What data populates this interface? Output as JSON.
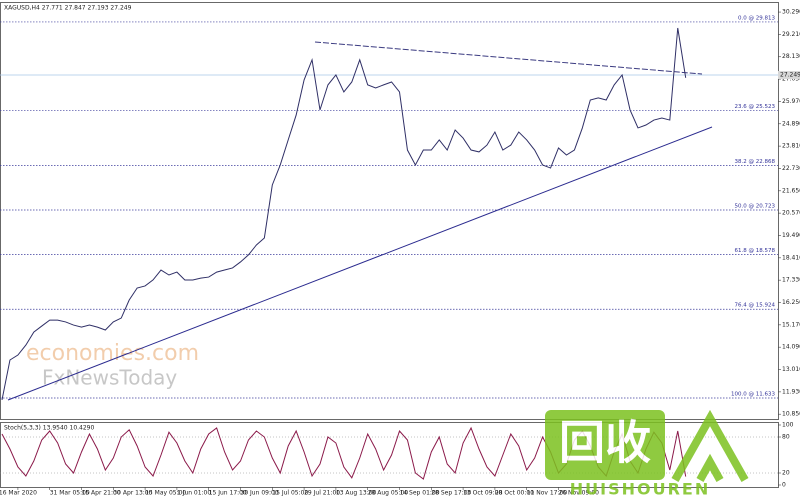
{
  "chart_data": [
    {
      "type": "line",
      "title": "XAGUSD,H4 27.771 27.847 27.193 27.249",
      "categories": [
        null,
        null,
        "16 Mar 2020",
        null,
        null,
        null,
        "31 Mar 05:00",
        null,
        null,
        null,
        "15 Apr 21:00",
        null,
        null,
        null,
        "30 Apr 13:00",
        null,
        null,
        null,
        "15 May 05:00",
        null,
        null,
        null,
        "1 Jun 01:00",
        null,
        null,
        null,
        "15 Jun 17:00",
        null,
        null,
        null,
        "30 Jun 09:00",
        null,
        null,
        null,
        "15 Jul 05:00",
        null,
        null,
        null,
        "29 Jul 21:00",
        null,
        null,
        null,
        "13 Aug 13:00",
        null,
        null,
        null,
        "28 Aug 05:00",
        null,
        null,
        null,
        "14 Sep 01:00",
        null,
        null,
        null,
        "28 Sep 17:00",
        null,
        null,
        null,
        "13 Oct 09:00",
        null,
        null,
        null,
        "28 Oct 00:00",
        null,
        null,
        null,
        "11 Nov 17:00",
        null,
        null,
        null,
        "26 Nov 09:00",
        null,
        null,
        null,
        null,
        null,
        null,
        null,
        null,
        null,
        null,
        null,
        null,
        null,
        null,
        null,
        null
      ],
      "series": [
        {
          "name": "XAGUSD",
          "color": "#2f2f66",
          "values": [
            11.54,
            13.47,
            13.71,
            14.19,
            14.82,
            15.11,
            15.4,
            15.4,
            15.31,
            15.16,
            15.06,
            15.16,
            15.06,
            14.92,
            15.31,
            15.5,
            16.37,
            16.95,
            17.05,
            17.34,
            17.82,
            17.58,
            17.72,
            17.34,
            17.34,
            17.43,
            17.48,
            17.72,
            17.82,
            17.92,
            18.21,
            18.55,
            19.03,
            19.37,
            21.93,
            22.9,
            24.11,
            25.31,
            27.01,
            27.98,
            25.56,
            26.77,
            27.25,
            26.43,
            26.91,
            27.98,
            26.77,
            26.62,
            26.77,
            26.91,
            26.43,
            23.62,
            22.9,
            23.62,
            23.62,
            24.11,
            23.62,
            24.59,
            24.2,
            23.62,
            23.53,
            23.86,
            24.49,
            23.62,
            23.86,
            24.49,
            24.11,
            23.62,
            22.9,
            22.75,
            23.72,
            23.38,
            23.62,
            24.69,
            26.04,
            26.14,
            26.04,
            26.77,
            27.25,
            25.56,
            24.69,
            24.83,
            25.07,
            25.17,
            25.07,
            29.52,
            27.11
          ]
        }
      ],
      "ylim": [
        10.57,
        30.68
      ],
      "yticks": [
        {
          "value": 30.29,
          "label": "30.290"
        },
        {
          "value": 29.21,
          "label": "29.210"
        },
        {
          "value": 28.13,
          "label": "28.130"
        },
        {
          "value": 27.05,
          "label": "27.050"
        },
        {
          "value": 25.97,
          "label": "25.970"
        },
        {
          "value": 24.89,
          "label": "24.890"
        },
        {
          "value": 23.81,
          "label": "23.810"
        },
        {
          "value": 22.73,
          "label": "22.730"
        },
        {
          "value": 21.65,
          "label": "21.650"
        },
        {
          "value": 20.57,
          "label": "20.570"
        },
        {
          "value": 19.49,
          "label": "19.490"
        },
        {
          "value": 18.41,
          "label": "18.410"
        },
        {
          "value": 17.33,
          "label": "17.330"
        },
        {
          "value": 16.25,
          "label": "16.250"
        },
        {
          "value": 15.17,
          "label": "15.170"
        },
        {
          "value": 14.09,
          "label": "14.090"
        },
        {
          "value": 13.01,
          "label": "13.010"
        },
        {
          "value": 11.93,
          "label": "11.930"
        },
        {
          "value": 10.85,
          "label": "10.850"
        }
      ],
      "last_price": 27.249,
      "fib_levels": [
        {
          "value": 29.813,
          "label": "0.0 @ 29.813"
        },
        {
          "value": 25.523,
          "label": "23.6 @ 25.523"
        },
        {
          "value": 22.868,
          "label": "38.2 @ 22.868"
        },
        {
          "value": 20.723,
          "label": "50.0 @ 20.723"
        },
        {
          "value": 18.578,
          "label": "61.8 @ 18.578"
        },
        {
          "value": 15.924,
          "label": "76.4 @ 15.924"
        },
        {
          "value": 11.633,
          "label": "100.0 @ 11.633"
        }
      ]
    },
    {
      "type": "line",
      "title": "Stoch(5,3,3) 13.9540 10.4290",
      "series": [
        {
          "name": "Stoch",
          "color": "#8b1a4a",
          "values": [
            85,
            60,
            30,
            15,
            40,
            75,
            90,
            70,
            35,
            20,
            55,
            85,
            60,
            25,
            45,
            80,
            92,
            65,
            30,
            15,
            50,
            88,
            70,
            40,
            20,
            60,
            85,
            95,
            55,
            25,
            40,
            75,
            90,
            80,
            45,
            20,
            65,
            90,
            55,
            15,
            35,
            80,
            70,
            30,
            12,
            45,
            85,
            60,
            25,
            50,
            90,
            75,
            20,
            10,
            55,
            80,
            35,
            20,
            70,
            95,
            60,
            30,
            15,
            50,
            85,
            65,
            25,
            45,
            80,
            55,
            20,
            35,
            75,
            90,
            65,
            30,
            15,
            55,
            85,
            40,
            20,
            60,
            88,
            70,
            25,
            90,
            14
          ]
        }
      ],
      "ylim": [
        0,
        100
      ],
      "yticks": [
        100,
        80,
        20,
        0
      ]
    }
  ],
  "watermarks": {
    "site": "economies.com",
    "news": "FxNewsToday",
    "logo": "回收",
    "logo_sub": "HUISHOUREN"
  }
}
